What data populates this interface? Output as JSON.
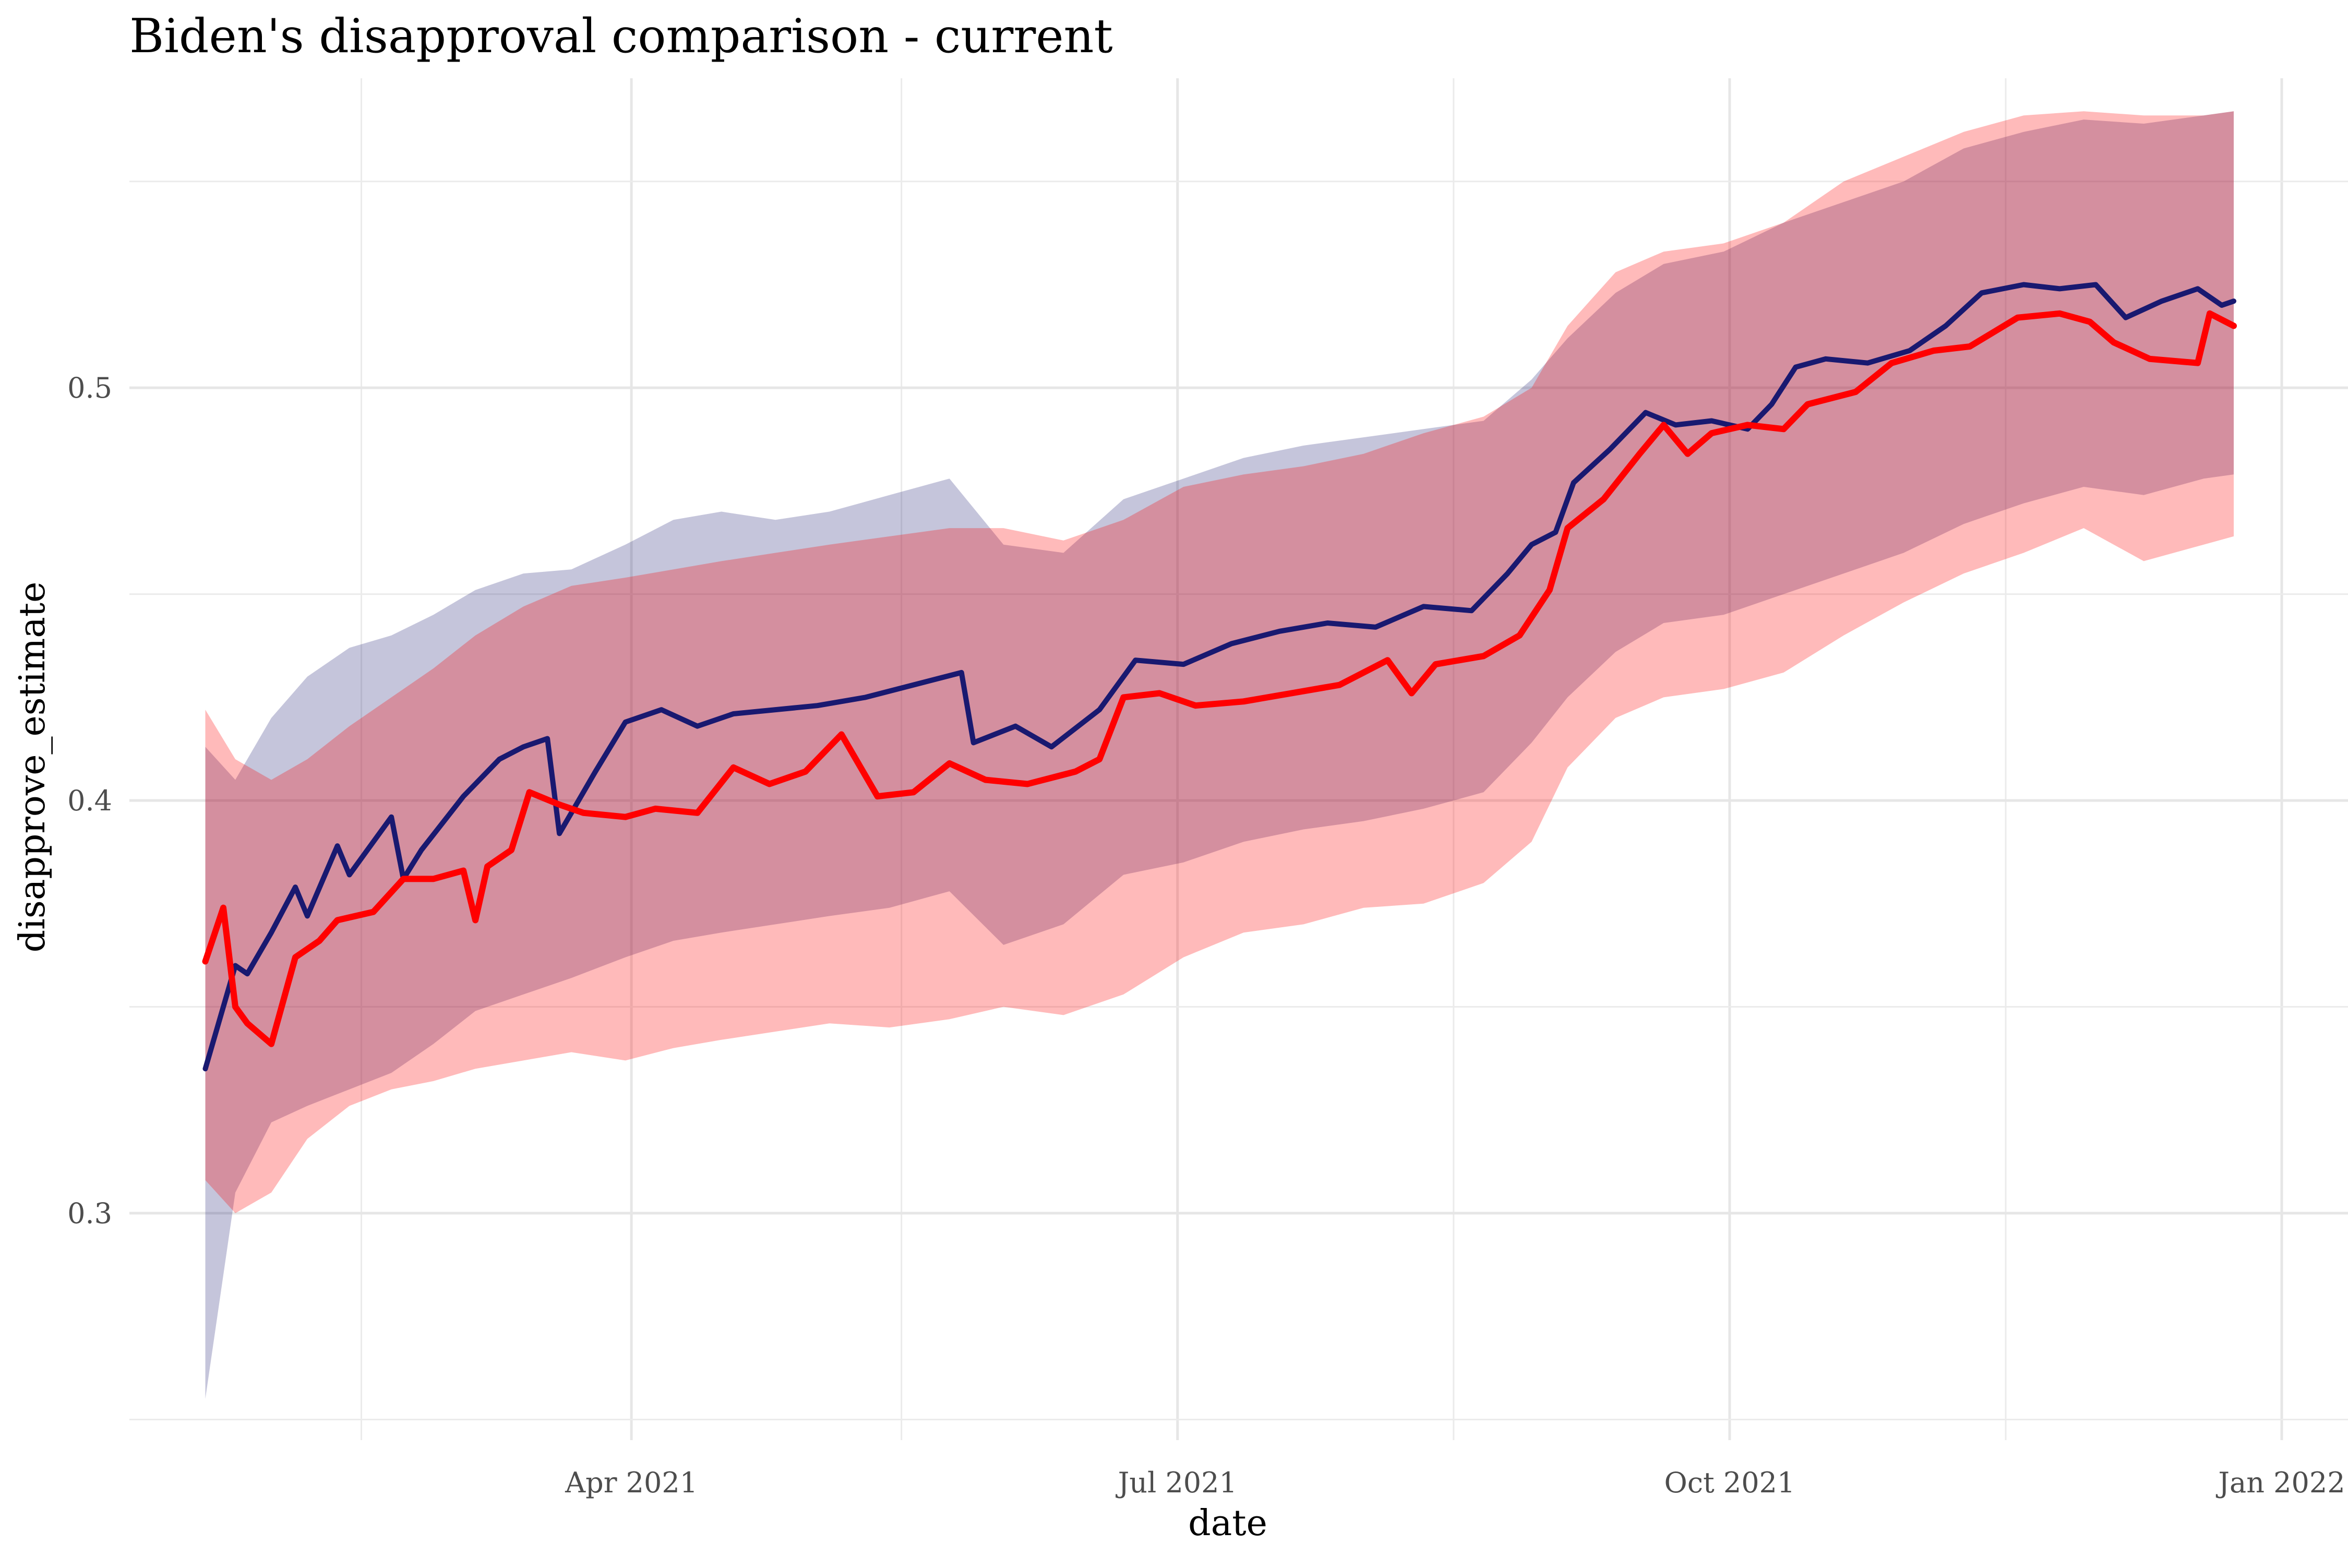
{
  "chart_data": {
    "type": "line",
    "title": "Biden's disapproval comparison - current",
    "xlabel": "date",
    "ylabel": "disapprove_estimate",
    "x_ticks": [
      "2021-04-01",
      "2021-07-01",
      "2021-10-01",
      "2022-01-01"
    ],
    "x_tick_labels": [
      "Apr 2021",
      "Jul 2021",
      "Oct 2021",
      "Jan 2022"
    ],
    "y_ticks": [
      0.3,
      0.4,
      0.5
    ],
    "y_tick_labels": [
      "0.3",
      "0.4",
      "0.5"
    ],
    "xlim": [
      "2021-01-01",
      "2022-01-04"
    ],
    "ylim": [
      0.245,
      0.575
    ],
    "grid": true,
    "legend": "none",
    "colors": {
      "series_a": "#191970",
      "series_b": "#ff0000",
      "band_a": "#191970",
      "band_b": "#ff0000"
    },
    "series": [
      {
        "key": "navy",
        "color": "#191970",
        "points": [
          [
            "2021-01-20",
            0.335
          ],
          [
            "2021-01-22",
            0.345
          ],
          [
            "2021-01-25",
            0.36
          ],
          [
            "2021-01-27",
            0.358
          ],
          [
            "2021-01-31",
            0.368
          ],
          [
            "2021-02-04",
            0.379
          ],
          [
            "2021-02-06",
            0.372
          ],
          [
            "2021-02-11",
            0.389
          ],
          [
            "2021-02-13",
            0.382
          ],
          [
            "2021-02-20",
            0.396
          ],
          [
            "2021-02-22",
            0.381
          ],
          [
            "2021-02-25",
            0.388
          ],
          [
            "2021-03-04",
            0.401
          ],
          [
            "2021-03-10",
            0.41
          ],
          [
            "2021-03-14",
            0.413
          ],
          [
            "2021-03-18",
            0.415
          ],
          [
            "2021-03-20",
            0.392
          ],
          [
            "2021-03-26",
            0.407
          ],
          [
            "2021-03-31",
            0.419
          ],
          [
            "2021-04-06",
            0.422
          ],
          [
            "2021-04-12",
            0.418
          ],
          [
            "2021-04-18",
            0.421
          ],
          [
            "2021-04-25",
            0.422
          ],
          [
            "2021-05-02",
            0.423
          ],
          [
            "2021-05-10",
            0.425
          ],
          [
            "2021-05-18",
            0.428
          ],
          [
            "2021-05-26",
            0.431
          ],
          [
            "2021-05-28",
            0.414
          ],
          [
            "2021-06-04",
            0.418
          ],
          [
            "2021-06-10",
            0.413
          ],
          [
            "2021-06-18",
            0.422
          ],
          [
            "2021-06-24",
            0.434
          ],
          [
            "2021-07-02",
            0.433
          ],
          [
            "2021-07-10",
            0.438
          ],
          [
            "2021-07-18",
            0.441
          ],
          [
            "2021-07-26",
            0.443
          ],
          [
            "2021-08-03",
            0.442
          ],
          [
            "2021-08-11",
            0.447
          ],
          [
            "2021-08-19",
            0.446
          ],
          [
            "2021-08-25",
            0.455
          ],
          [
            "2021-08-29",
            0.462
          ],
          [
            "2021-09-02",
            0.465
          ],
          [
            "2021-09-05",
            0.477
          ],
          [
            "2021-09-11",
            0.485
          ],
          [
            "2021-09-17",
            0.494
          ],
          [
            "2021-09-22",
            0.491
          ],
          [
            "2021-09-28",
            0.492
          ],
          [
            "2021-10-04",
            0.49
          ],
          [
            "2021-10-08",
            0.496
          ],
          [
            "2021-10-12",
            0.505
          ],
          [
            "2021-10-17",
            0.507
          ],
          [
            "2021-10-24",
            0.506
          ],
          [
            "2021-10-31",
            0.509
          ],
          [
            "2021-11-06",
            0.515
          ],
          [
            "2021-11-12",
            0.523
          ],
          [
            "2021-11-19",
            0.525
          ],
          [
            "2021-11-25",
            0.524
          ],
          [
            "2021-12-01",
            0.525
          ],
          [
            "2021-12-06",
            0.517
          ],
          [
            "2021-12-12",
            0.521
          ],
          [
            "2021-12-18",
            0.524
          ],
          [
            "2021-12-22",
            0.52
          ],
          [
            "2021-12-24",
            0.521
          ]
        ]
      },
      {
        "key": "red",
        "color": "#ff0000",
        "points": [
          [
            "2021-01-20",
            0.361
          ],
          [
            "2021-01-23",
            0.374
          ],
          [
            "2021-01-25",
            0.35
          ],
          [
            "2021-01-27",
            0.346
          ],
          [
            "2021-01-31",
            0.341
          ],
          [
            "2021-02-04",
            0.362
          ],
          [
            "2021-02-08",
            0.366
          ],
          [
            "2021-02-11",
            0.371
          ],
          [
            "2021-02-17",
            0.373
          ],
          [
            "2021-02-22",
            0.381
          ],
          [
            "2021-02-27",
            0.381
          ],
          [
            "2021-03-04",
            0.383
          ],
          [
            "2021-03-06",
            0.371
          ],
          [
            "2021-03-08",
            0.384
          ],
          [
            "2021-03-12",
            0.388
          ],
          [
            "2021-03-15",
            0.402
          ],
          [
            "2021-03-20",
            0.399
          ],
          [
            "2021-03-24",
            0.397
          ],
          [
            "2021-03-31",
            0.396
          ],
          [
            "2021-04-05",
            0.398
          ],
          [
            "2021-04-12",
            0.397
          ],
          [
            "2021-04-18",
            0.408
          ],
          [
            "2021-04-24",
            0.404
          ],
          [
            "2021-04-30",
            0.407
          ],
          [
            "2021-05-06",
            0.416
          ],
          [
            "2021-05-12",
            0.401
          ],
          [
            "2021-05-18",
            0.402
          ],
          [
            "2021-05-24",
            0.409
          ],
          [
            "2021-05-30",
            0.405
          ],
          [
            "2021-06-06",
            0.404
          ],
          [
            "2021-06-14",
            0.407
          ],
          [
            "2021-06-18",
            0.41
          ],
          [
            "2021-06-22",
            0.425
          ],
          [
            "2021-06-28",
            0.426
          ],
          [
            "2021-07-04",
            0.423
          ],
          [
            "2021-07-12",
            0.424
          ],
          [
            "2021-07-20",
            0.426
          ],
          [
            "2021-07-28",
            0.428
          ],
          [
            "2021-08-05",
            0.434
          ],
          [
            "2021-08-09",
            0.426
          ],
          [
            "2021-08-13",
            0.433
          ],
          [
            "2021-08-21",
            0.435
          ],
          [
            "2021-08-27",
            0.44
          ],
          [
            "2021-09-01",
            0.451
          ],
          [
            "2021-09-04",
            0.466
          ],
          [
            "2021-09-10",
            0.473
          ],
          [
            "2021-09-16",
            0.484
          ],
          [
            "2021-09-20",
            0.491
          ],
          [
            "2021-09-24",
            0.484
          ],
          [
            "2021-09-28",
            0.489
          ],
          [
            "2021-10-04",
            0.491
          ],
          [
            "2021-10-10",
            0.49
          ],
          [
            "2021-10-14",
            0.496
          ],
          [
            "2021-10-22",
            0.499
          ],
          [
            "2021-10-28",
            0.506
          ],
          [
            "2021-11-04",
            0.509
          ],
          [
            "2021-11-10",
            0.51
          ],
          [
            "2021-11-18",
            0.517
          ],
          [
            "2021-11-25",
            0.518
          ],
          [
            "2021-11-30",
            0.516
          ],
          [
            "2021-12-04",
            0.511
          ],
          [
            "2021-12-10",
            0.507
          ],
          [
            "2021-12-18",
            0.506
          ],
          [
            "2021-12-20",
            0.518
          ],
          [
            "2021-12-24",
            0.515
          ]
        ]
      }
    ],
    "bands": [
      {
        "key": "navy-band",
        "color": "#191970",
        "points": [
          [
            "2021-01-20",
            0.255,
            0.413
          ],
          [
            "2021-01-25",
            0.305,
            0.405
          ],
          [
            "2021-01-31",
            0.322,
            0.42
          ],
          [
            "2021-02-06",
            0.326,
            0.43
          ],
          [
            "2021-02-13",
            0.33,
            0.437
          ],
          [
            "2021-02-20",
            0.334,
            0.44
          ],
          [
            "2021-02-27",
            0.341,
            0.445
          ],
          [
            "2021-03-06",
            0.349,
            0.451
          ],
          [
            "2021-03-14",
            0.353,
            0.455
          ],
          [
            "2021-03-22",
            0.357,
            0.456
          ],
          [
            "2021-03-31",
            0.362,
            0.462
          ],
          [
            "2021-04-08",
            0.366,
            0.468
          ],
          [
            "2021-04-16",
            0.368,
            0.47
          ],
          [
            "2021-04-25",
            0.37,
            0.468
          ],
          [
            "2021-05-04",
            0.372,
            0.47
          ],
          [
            "2021-05-14",
            0.374,
            0.474
          ],
          [
            "2021-05-24",
            0.378,
            0.478
          ],
          [
            "2021-06-02",
            0.365,
            0.462
          ],
          [
            "2021-06-12",
            0.37,
            0.46
          ],
          [
            "2021-06-22",
            0.382,
            0.473
          ],
          [
            "2021-07-02",
            0.385,
            0.478
          ],
          [
            "2021-07-12",
            0.39,
            0.483
          ],
          [
            "2021-07-22",
            0.393,
            0.486
          ],
          [
            "2021-08-01",
            0.395,
            0.488
          ],
          [
            "2021-08-11",
            0.398,
            0.49
          ],
          [
            "2021-08-21",
            0.402,
            0.492
          ],
          [
            "2021-08-29",
            0.414,
            0.502
          ],
          [
            "2021-09-04",
            0.425,
            0.512
          ],
          [
            "2021-09-12",
            0.436,
            0.523
          ],
          [
            "2021-09-20",
            0.443,
            0.53
          ],
          [
            "2021-09-30",
            0.445,
            0.533
          ],
          [
            "2021-10-10",
            0.45,
            0.54
          ],
          [
            "2021-10-20",
            0.455,
            0.545
          ],
          [
            "2021-10-30",
            0.46,
            0.55
          ],
          [
            "2021-11-09",
            0.467,
            0.558
          ],
          [
            "2021-11-19",
            0.472,
            0.562
          ],
          [
            "2021-11-29",
            0.476,
            0.565
          ],
          [
            "2021-12-09",
            0.474,
            0.564
          ],
          [
            "2021-12-19",
            0.478,
            0.566
          ],
          [
            "2021-12-24",
            0.479,
            0.567
          ]
        ]
      },
      {
        "key": "red-band",
        "color": "#ff0000",
        "points": [
          [
            "2021-01-20",
            0.308,
            0.422
          ],
          [
            "2021-01-25",
            0.3,
            0.41
          ],
          [
            "2021-01-31",
            0.305,
            0.405
          ],
          [
            "2021-02-06",
            0.318,
            0.41
          ],
          [
            "2021-02-13",
            0.326,
            0.418
          ],
          [
            "2021-02-20",
            0.33,
            0.425
          ],
          [
            "2021-02-27",
            0.332,
            0.432
          ],
          [
            "2021-03-06",
            0.335,
            0.44
          ],
          [
            "2021-03-14",
            0.337,
            0.447
          ],
          [
            "2021-03-22",
            0.339,
            0.452
          ],
          [
            "2021-03-31",
            0.337,
            0.454
          ],
          [
            "2021-04-08",
            0.34,
            0.456
          ],
          [
            "2021-04-16",
            0.342,
            0.458
          ],
          [
            "2021-04-25",
            0.344,
            0.46
          ],
          [
            "2021-05-04",
            0.346,
            0.462
          ],
          [
            "2021-05-14",
            0.345,
            0.464
          ],
          [
            "2021-05-24",
            0.347,
            0.466
          ],
          [
            "2021-06-02",
            0.35,
            0.466
          ],
          [
            "2021-06-12",
            0.348,
            0.463
          ],
          [
            "2021-06-22",
            0.353,
            0.468
          ],
          [
            "2021-07-02",
            0.362,
            0.476
          ],
          [
            "2021-07-12",
            0.368,
            0.479
          ],
          [
            "2021-07-22",
            0.37,
            0.481
          ],
          [
            "2021-08-01",
            0.374,
            0.484
          ],
          [
            "2021-08-11",
            0.375,
            0.489
          ],
          [
            "2021-08-21",
            0.38,
            0.493
          ],
          [
            "2021-08-29",
            0.39,
            0.5
          ],
          [
            "2021-09-04",
            0.408,
            0.515
          ],
          [
            "2021-09-12",
            0.42,
            0.528
          ],
          [
            "2021-09-20",
            0.425,
            0.533
          ],
          [
            "2021-09-30",
            0.427,
            0.535
          ],
          [
            "2021-10-10",
            0.431,
            0.54
          ],
          [
            "2021-10-20",
            0.44,
            0.55
          ],
          [
            "2021-10-30",
            0.448,
            0.556
          ],
          [
            "2021-11-09",
            0.455,
            0.562
          ],
          [
            "2021-11-19",
            0.46,
            0.566
          ],
          [
            "2021-11-29",
            0.466,
            0.567
          ],
          [
            "2021-12-09",
            0.458,
            0.566
          ],
          [
            "2021-12-19",
            0.462,
            0.566
          ],
          [
            "2021-12-24",
            0.464,
            0.567
          ]
        ]
      }
    ]
  }
}
